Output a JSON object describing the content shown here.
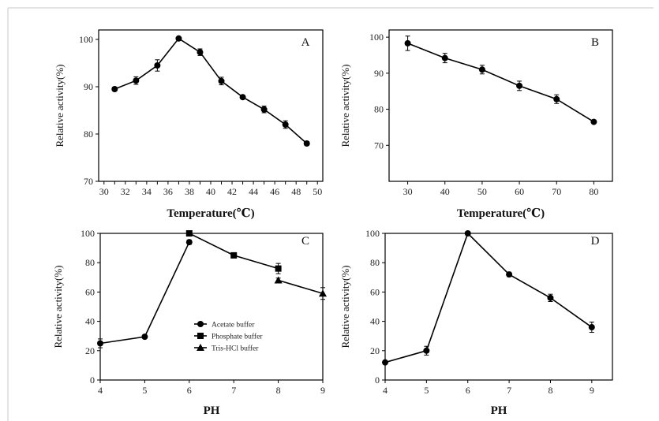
{
  "chart_data": [
    {
      "type": "line",
      "panel_label": "A",
      "xlabel": "Temperature(℃)",
      "ylabel": "Relative activity(%)",
      "xlim": [
        29.5,
        50.5
      ],
      "ylim": [
        70,
        102
      ],
      "xticks": [
        30,
        31,
        32,
        33,
        34,
        35,
        36,
        37,
        38,
        39,
        40,
        41,
        42,
        43,
        44,
        45,
        46,
        47,
        48,
        49,
        50
      ],
      "xtick_labels": [
        "30",
        "",
        "32",
        "",
        "34",
        "",
        "36",
        "",
        "38",
        "",
        "40",
        "",
        "42",
        "",
        "44",
        "",
        "46",
        "",
        "48",
        "",
        "50"
      ],
      "yticks": [
        70,
        80,
        90,
        100
      ],
      "series": [
        {
          "marker": "circle",
          "x": [
            31,
            33,
            35,
            37,
            39,
            41,
            43,
            45,
            47,
            49
          ],
          "y": [
            89.5,
            91.3,
            94.5,
            100.2,
            97.3,
            91.2,
            87.8,
            85.2,
            82.0,
            78.0
          ],
          "err": [
            0.4,
            0.8,
            1.2,
            0.3,
            0.7,
            0.8,
            0.3,
            0.7,
            0.8,
            0.4
          ]
        }
      ]
    },
    {
      "type": "line",
      "panel_label": "B",
      "xlabel": "Temperature(℃)",
      "ylabel": "Relative activity(%)",
      "xlim": [
        25,
        85
      ],
      "ylim": [
        60,
        102
      ],
      "xticks": [
        30,
        40,
        50,
        60,
        70,
        80
      ],
      "xtick_labels": [
        "30",
        "40",
        "50",
        "60",
        "70",
        "80"
      ],
      "yticks": [
        70,
        80,
        90,
        100
      ],
      "series": [
        {
          "marker": "circle",
          "x": [
            30,
            40,
            50,
            60,
            70,
            80
          ],
          "y": [
            98.3,
            94.2,
            91.0,
            86.5,
            82.8,
            76.5
          ],
          "err": [
            2.0,
            1.3,
            1.2,
            1.3,
            1.2,
            0.4
          ]
        }
      ]
    },
    {
      "type": "line",
      "panel_label": "C",
      "xlabel": "PH",
      "ylabel": "Relative activity(%)",
      "xlim": [
        4,
        9
      ],
      "ylim": [
        0,
        100
      ],
      "xticks": [
        4,
        5,
        6,
        7,
        8,
        9
      ],
      "xtick_labels": [
        "4",
        "5",
        "6",
        "7",
        "8",
        "9"
      ],
      "yticks": [
        0,
        20,
        40,
        60,
        80,
        100
      ],
      "legend": [
        "Acetate buffer",
        "Phosphate buffer",
        "Tris-HCl buffer"
      ],
      "series": [
        {
          "marker": "circle",
          "x": [
            4,
            5,
            6
          ],
          "y": [
            25,
            29.5,
            94
          ],
          "err": [
            3,
            1,
            1.5
          ]
        },
        {
          "marker": "square",
          "x": [
            6,
            7,
            8
          ],
          "y": [
            100,
            85,
            76
          ],
          "err": [
            1.5,
            1.5,
            3.5
          ]
        },
        {
          "marker": "triangle",
          "x": [
            8,
            9
          ],
          "y": [
            68,
            59
          ],
          "err": [
            1.5,
            4
          ]
        }
      ]
    },
    {
      "type": "line",
      "panel_label": "D",
      "xlabel": "PH",
      "ylabel": "Relative activity(%)",
      "xlim": [
        4,
        9.5
      ],
      "ylim": [
        0,
        100
      ],
      "xticks": [
        4,
        5,
        6,
        7,
        8,
        9
      ],
      "xtick_labels": [
        "4",
        "5",
        "6",
        "7",
        "8",
        "9"
      ],
      "yticks": [
        0,
        20,
        40,
        60,
        80,
        100
      ],
      "series": [
        {
          "marker": "circle",
          "x": [
            4,
            5,
            6,
            7,
            8,
            9
          ],
          "y": [
            12,
            20,
            100,
            72,
            56,
            36
          ],
          "err": [
            0.5,
            3,
            0.5,
            1.5,
            2.5,
            3.5
          ]
        }
      ]
    }
  ]
}
